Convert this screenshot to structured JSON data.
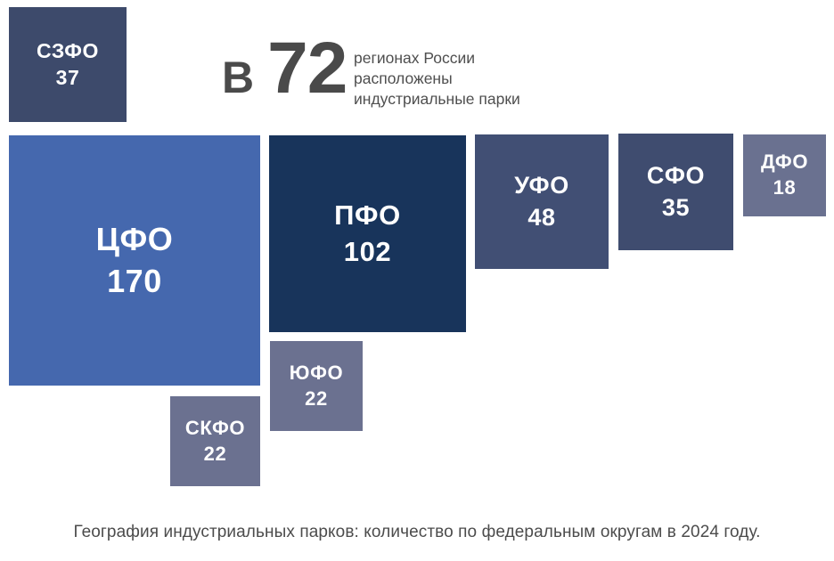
{
  "header": {
    "prefix": "В",
    "number": "72",
    "line1": "регионах России",
    "line2": "расположены",
    "line3": "индустриальные парки"
  },
  "squares": [
    {
      "label": "СЗФО",
      "value": "37",
      "color": "#3d4a6b"
    },
    {
      "label": "ЦФО",
      "value": "170",
      "color": "#4568ae"
    },
    {
      "label": "ПФО",
      "value": "102",
      "color": "#18345b"
    },
    {
      "label": "УФО",
      "value": "48",
      "color": "#414f74"
    },
    {
      "label": "СФО",
      "value": "35",
      "color": "#3f4c6f"
    },
    {
      "label": "ДФО",
      "value": "18",
      "color": "#6a7190"
    },
    {
      "label": "ЮФО",
      "value": "22",
      "color": "#6b7190"
    },
    {
      "label": "СКФО",
      "value": "22",
      "color": "#6b7190"
    }
  ],
  "caption": "География индустриальных парков: количество по федеральным округам в 2024 году.",
  "chart_data": {
    "type": "treemap",
    "title": "География индустриальных парков: количество по федеральным округам в 2024 году.",
    "annotation": "В 72 регионах России расположены индустриальные парки",
    "categories": [
      "СЗФО",
      "ЦФО",
      "ПФО",
      "УФО",
      "СФО",
      "ДФО",
      "ЮФО",
      "СКФО"
    ],
    "values": [
      37,
      170,
      102,
      48,
      35,
      18,
      22,
      22
    ],
    "total_regions": 72,
    "year": 2024,
    "legend_position": "none",
    "sizing": "square area proportional to value",
    "colors": [
      "#3d4a6b",
      "#4568ae",
      "#18345b",
      "#414f74",
      "#3f4c6f",
      "#6a7190",
      "#6b7190",
      "#6b7190"
    ]
  }
}
